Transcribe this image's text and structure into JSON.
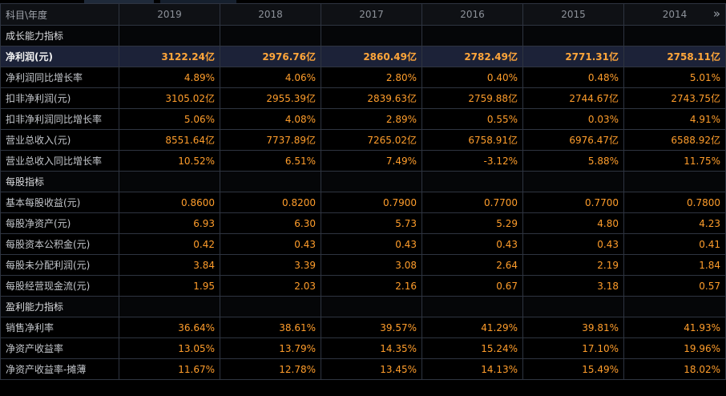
{
  "header": {
    "label": "科目\\年度",
    "years": [
      "2019",
      "2018",
      "2017",
      "2016",
      "2015",
      "2014"
    ]
  },
  "rows": [
    {
      "type": "section",
      "label": "成长能力指标"
    },
    {
      "type": "highlight",
      "label": "净利润(元)",
      "values": [
        "3122.24亿",
        "2976.76亿",
        "2860.49亿",
        "2782.49亿",
        "2771.31亿",
        "2758.11亿"
      ]
    },
    {
      "type": "data",
      "label": "净利润同比增长率",
      "values": [
        "4.89%",
        "4.06%",
        "2.80%",
        "0.40%",
        "0.48%",
        "5.01%"
      ]
    },
    {
      "type": "data",
      "label": "扣非净利润(元)",
      "values": [
        "3105.02亿",
        "2955.39亿",
        "2839.63亿",
        "2759.88亿",
        "2744.67亿",
        "2743.75亿"
      ]
    },
    {
      "type": "data",
      "label": "扣非净利润同比增长率",
      "values": [
        "5.06%",
        "4.08%",
        "2.89%",
        "0.55%",
        "0.03%",
        "4.91%"
      ]
    },
    {
      "type": "data",
      "label": "营业总收入(元)",
      "values": [
        "8551.64亿",
        "7737.89亿",
        "7265.02亿",
        "6758.91亿",
        "6976.47亿",
        "6588.92亿"
      ]
    },
    {
      "type": "data",
      "label": "营业总收入同比增长率",
      "values": [
        "10.52%",
        "6.51%",
        "7.49%",
        "-3.12%",
        "5.88%",
        "11.75%"
      ]
    },
    {
      "type": "section",
      "label": "每股指标"
    },
    {
      "type": "data",
      "label": "基本每股收益(元)",
      "values": [
        "0.8600",
        "0.8200",
        "0.7900",
        "0.7700",
        "0.7700",
        "0.7800"
      ]
    },
    {
      "type": "data",
      "label": "每股净资产(元)",
      "values": [
        "6.93",
        "6.30",
        "5.73",
        "5.29",
        "4.80",
        "4.23"
      ]
    },
    {
      "type": "data",
      "label": "每股资本公积金(元)",
      "values": [
        "0.42",
        "0.43",
        "0.43",
        "0.43",
        "0.43",
        "0.41"
      ]
    },
    {
      "type": "data",
      "label": "每股未分配利润(元)",
      "values": [
        "3.84",
        "3.39",
        "3.08",
        "2.64",
        "2.19",
        "1.84"
      ]
    },
    {
      "type": "data",
      "label": "每股经营现金流(元)",
      "values": [
        "1.95",
        "2.03",
        "2.16",
        "0.67",
        "3.18",
        "0.57"
      ]
    },
    {
      "type": "section",
      "label": "盈利能力指标"
    },
    {
      "type": "data",
      "label": "销售净利率",
      "values": [
        "36.64%",
        "38.61%",
        "39.57%",
        "41.29%",
        "39.81%",
        "41.93%"
      ]
    },
    {
      "type": "data",
      "label": "净资产收益率",
      "values": [
        "13.05%",
        "13.79%",
        "14.35%",
        "15.24%",
        "17.10%",
        "19.96%"
      ]
    },
    {
      "type": "data",
      "label": "净资产收益率-摊薄",
      "values": [
        "11.67%",
        "12.78%",
        "13.45%",
        "14.13%",
        "15.49%",
        "18.02%"
      ]
    }
  ],
  "icons": {
    "next_page": "double-chevron-right-icon"
  },
  "colors": {
    "value": "#ff9d2b",
    "highlight_row": "#1c2238",
    "grid": "#2e3440",
    "background": "#000000"
  }
}
